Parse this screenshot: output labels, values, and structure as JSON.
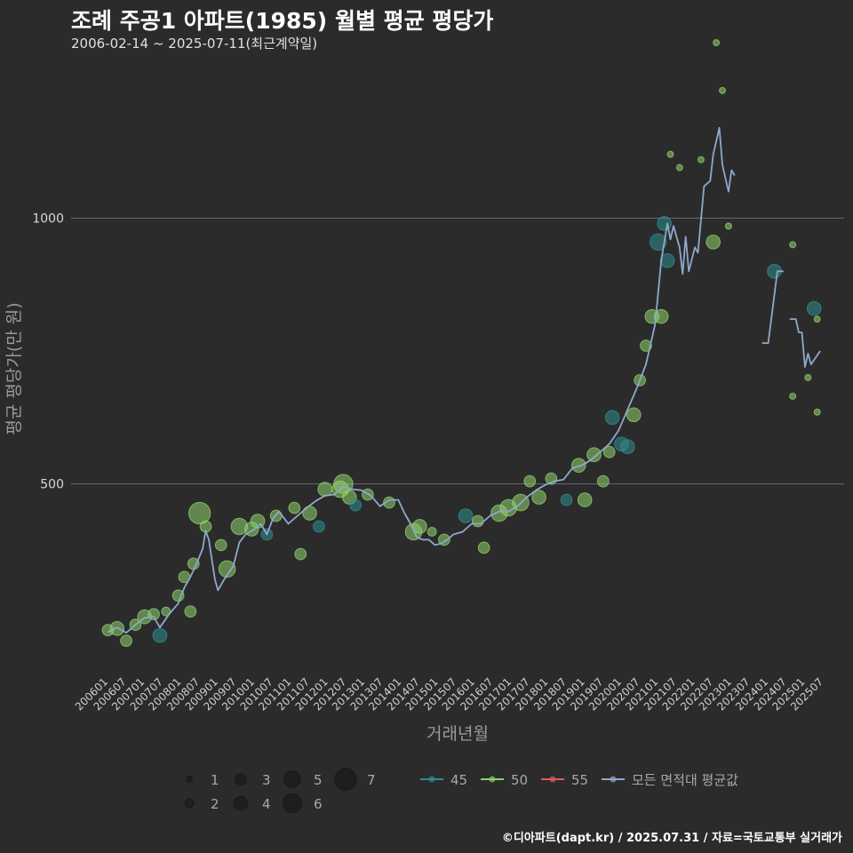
{
  "title": "조례 주공1 아파트(1985) 월별 평균 평당가",
  "subtitle": "2006-02-14 ~ 2025-07-11(최근계약일)",
  "caption": "©디아파트(dapt.kr) / 2025.07.31 / 자료=국토교통부 실거래가",
  "colors": {
    "background": "#2b2b2c",
    "grid": "#6a6a6a",
    "s45": "#2f8d8e",
    "s50": "#8fd16c",
    "s55": "#e05a5a",
    "avg": "#8fa8cc"
  },
  "chart_data": {
    "type": "scatter",
    "xlabel": "거래년월",
    "ylabel": "평균 평당가(만 원)",
    "x_range": [
      "2006-01",
      "2025-09"
    ],
    "ylim": [
      140,
      1310
    ],
    "y_ticks": [
      500,
      1000
    ],
    "x_ticks": [
      "200601",
      "200607",
      "200701",
      "200707",
      "200801",
      "200807",
      "200901",
      "200907",
      "201001",
      "201007",
      "201101",
      "201107",
      "201201",
      "201207",
      "201301",
      "201307",
      "201401",
      "201407",
      "201501",
      "201507",
      "201601",
      "201607",
      "201701",
      "201707",
      "201801",
      "201807",
      "201901",
      "201907",
      "202001",
      "202007",
      "202101",
      "202107",
      "202201",
      "202207",
      "202301",
      "202307",
      "202401",
      "202407",
      "202501",
      "202507"
    ],
    "grid": "horizontal",
    "legend_size": {
      "title": "",
      "values": [
        1,
        2,
        3,
        4,
        5,
        6,
        7
      ]
    },
    "legend_series": [
      {
        "key": "45",
        "name": "45"
      },
      {
        "key": "50",
        "name": "50"
      },
      {
        "key": "55",
        "name": "55"
      },
      {
        "key": "avg",
        "name": "모든 면적대 평균값"
      }
    ],
    "avg_line": [
      {
        "segment": [
          [
            "2006-02",
            221
          ],
          [
            "2006-05",
            230
          ],
          [
            "2006-08",
            220
          ],
          [
            "2006-11",
            235
          ],
          [
            "2007-02",
            248
          ],
          [
            "2007-05",
            250
          ],
          [
            "2007-07",
            230
          ],
          [
            "2007-10",
            255
          ],
          [
            "2008-01",
            275
          ],
          [
            "2008-03",
            305
          ],
          [
            "2008-05",
            325
          ],
          [
            "2008-07",
            350
          ],
          [
            "2008-09",
            378
          ],
          [
            "2008-10",
            412
          ],
          [
            "2008-11",
            395
          ],
          [
            "2009-01",
            320
          ],
          [
            "2009-02",
            300
          ],
          [
            "2009-04",
            320
          ],
          [
            "2009-07",
            345
          ],
          [
            "2009-09",
            390
          ],
          [
            "2009-11",
            405
          ],
          [
            "2010-02",
            415
          ],
          [
            "2010-04",
            425
          ],
          [
            "2010-06",
            405
          ],
          [
            "2010-08",
            435
          ],
          [
            "2010-10",
            448
          ],
          [
            "2011-01",
            425
          ],
          [
            "2011-04",
            440
          ],
          [
            "2011-07",
            455
          ],
          [
            "2011-10",
            468
          ],
          [
            "2012-01",
            478
          ],
          [
            "2012-04",
            480
          ],
          [
            "2012-07",
            495
          ],
          [
            "2012-10",
            490
          ],
          [
            "2013-01",
            488
          ],
          [
            "2013-04",
            478
          ],
          [
            "2013-07",
            458
          ],
          [
            "2013-10",
            470
          ],
          [
            "2014-01",
            470
          ],
          [
            "2014-03",
            445
          ],
          [
            "2014-05",
            425
          ],
          [
            "2014-07",
            400
          ],
          [
            "2014-09",
            395
          ],
          [
            "2014-11",
            395
          ],
          [
            "2015-01",
            385
          ],
          [
            "2015-03",
            388
          ],
          [
            "2015-05",
            395
          ],
          [
            "2015-07",
            405
          ],
          [
            "2015-10",
            410
          ],
          [
            "2016-01",
            425
          ],
          [
            "2016-04",
            425
          ],
          [
            "2016-07",
            440
          ],
          [
            "2016-10",
            448
          ],
          [
            "2017-01",
            448
          ],
          [
            "2017-04",
            458
          ],
          [
            "2017-07",
            475
          ],
          [
            "2017-10",
            488
          ],
          [
            "2018-01",
            498
          ],
          [
            "2018-04",
            505
          ],
          [
            "2018-07",
            508
          ],
          [
            "2018-10",
            530
          ],
          [
            "2019-01",
            535
          ],
          [
            "2019-04",
            545
          ],
          [
            "2019-07",
            560
          ],
          [
            "2019-10",
            575
          ],
          [
            "2020-01",
            600
          ],
          [
            "2020-04",
            640
          ],
          [
            "2020-07",
            680
          ],
          [
            "2020-10",
            725
          ],
          [
            "2021-01",
            800
          ],
          [
            "2021-03",
            920
          ],
          [
            "2021-05",
            990
          ],
          [
            "2021-06",
            960
          ],
          [
            "2021-07",
            985
          ],
          [
            "2021-09",
            945
          ],
          [
            "2021-10",
            895
          ],
          [
            "2021-11",
            965
          ],
          [
            "2021-12",
            900
          ],
          [
            "2022-02",
            945
          ],
          [
            "2022-03",
            935
          ],
          [
            "2022-05",
            1060
          ],
          [
            "2022-07",
            1070
          ],
          [
            "2022-08",
            1120
          ],
          [
            "2022-10",
            1170
          ],
          [
            "2022-11",
            1100
          ],
          [
            "2023-01",
            1050
          ],
          [
            "2023-02",
            1090
          ],
          [
            "2023-03",
            1080
          ]
        ]
      },
      {
        "segment": [
          [
            "2023-12",
            765
          ],
          [
            "2024-02",
            765
          ],
          [
            "2024-05",
            900
          ],
          [
            "2024-07",
            900
          ]
        ]
      },
      {
        "segment": [
          [
            "2024-09",
            810
          ],
          [
            "2024-11",
            810
          ],
          [
            "2024-12",
            785
          ],
          [
            "2025-01",
            785
          ],
          [
            "2025-02",
            720
          ],
          [
            "2025-03",
            745
          ],
          [
            "2025-04",
            725
          ],
          [
            "2025-07",
            750
          ]
        ]
      }
    ],
    "points": [
      {
        "s": "50",
        "x": "2006-02",
        "y": 225,
        "n": 3
      },
      {
        "s": "50",
        "x": "2006-05",
        "y": 228,
        "n": 4
      },
      {
        "s": "50",
        "x": "2006-08",
        "y": 205,
        "n": 3
      },
      {
        "s": "50",
        "x": "2006-11",
        "y": 235,
        "n": 3
      },
      {
        "s": "50",
        "x": "2007-02",
        "y": 250,
        "n": 4
      },
      {
        "s": "50",
        "x": "2007-05",
        "y": 255,
        "n": 3
      },
      {
        "s": "45",
        "x": "2007-07",
        "y": 215,
        "n": 4
      },
      {
        "s": "50",
        "x": "2007-09",
        "y": 260,
        "n": 2
      },
      {
        "s": "50",
        "x": "2008-01",
        "y": 290,
        "n": 3
      },
      {
        "s": "50",
        "x": "2008-03",
        "y": 325,
        "n": 3
      },
      {
        "s": "50",
        "x": "2008-06",
        "y": 350,
        "n": 3
      },
      {
        "s": "50",
        "x": "2008-08",
        "y": 445,
        "n": 7
      },
      {
        "s": "50",
        "x": "2008-10",
        "y": 420,
        "n": 3
      },
      {
        "s": "50",
        "x": "2008-05",
        "y": 260,
        "n": 3
      },
      {
        "s": "50",
        "x": "2009-05",
        "y": 340,
        "n": 5
      },
      {
        "s": "50",
        "x": "2009-09",
        "y": 420,
        "n": 5
      },
      {
        "s": "50",
        "x": "2009-03",
        "y": 385,
        "n": 3
      },
      {
        "s": "50",
        "x": "2010-01",
        "y": 415,
        "n": 4
      },
      {
        "s": "50",
        "x": "2010-03",
        "y": 430,
        "n": 4
      },
      {
        "s": "45",
        "x": "2010-06",
        "y": 405,
        "n": 3
      },
      {
        "s": "50",
        "x": "2010-09",
        "y": 440,
        "n": 3
      },
      {
        "s": "50",
        "x": "2011-03",
        "y": 455,
        "n": 3
      },
      {
        "s": "50",
        "x": "2011-05",
        "y": 368,
        "n": 3
      },
      {
        "s": "50",
        "x": "2011-08",
        "y": 445,
        "n": 4
      },
      {
        "s": "45",
        "x": "2011-11",
        "y": 420,
        "n": 3
      },
      {
        "s": "50",
        "x": "2012-01",
        "y": 490,
        "n": 4
      },
      {
        "s": "50",
        "x": "2012-06",
        "y": 490,
        "n": 5
      },
      {
        "s": "50",
        "x": "2012-07",
        "y": 500,
        "n": 6
      },
      {
        "s": "50",
        "x": "2012-09",
        "y": 475,
        "n": 4
      },
      {
        "s": "45",
        "x": "2012-11",
        "y": 460,
        "n": 3
      },
      {
        "s": "50",
        "x": "2013-03",
        "y": 480,
        "n": 3
      },
      {
        "s": "50",
        "x": "2013-10",
        "y": 465,
        "n": 3
      },
      {
        "s": "50",
        "x": "2014-06",
        "y": 410,
        "n": 5
      },
      {
        "s": "50",
        "x": "2014-08",
        "y": 420,
        "n": 4
      },
      {
        "s": "50",
        "x": "2014-12",
        "y": 410,
        "n": 2
      },
      {
        "s": "50",
        "x": "2015-04",
        "y": 395,
        "n": 3
      },
      {
        "s": "45",
        "x": "2015-11",
        "y": 440,
        "n": 4
      },
      {
        "s": "50",
        "x": "2016-03",
        "y": 430,
        "n": 3
      },
      {
        "s": "50",
        "x": "2016-05",
        "y": 380,
        "n": 3
      },
      {
        "s": "50",
        "x": "2016-10",
        "y": 445,
        "n": 5
      },
      {
        "s": "50",
        "x": "2017-01",
        "y": 455,
        "n": 5
      },
      {
        "s": "50",
        "x": "2017-05",
        "y": 465,
        "n": 5
      },
      {
        "s": "50",
        "x": "2017-08",
        "y": 505,
        "n": 3
      },
      {
        "s": "50",
        "x": "2017-11",
        "y": 475,
        "n": 4
      },
      {
        "s": "50",
        "x": "2018-03",
        "y": 510,
        "n": 3
      },
      {
        "s": "45",
        "x": "2018-08",
        "y": 470,
        "n": 3
      },
      {
        "s": "50",
        "x": "2018-12",
        "y": 535,
        "n": 4
      },
      {
        "s": "50",
        "x": "2019-02",
        "y": 470,
        "n": 4
      },
      {
        "s": "50",
        "x": "2019-05",
        "y": 555,
        "n": 4
      },
      {
        "s": "50",
        "x": "2019-08",
        "y": 505,
        "n": 3
      },
      {
        "s": "50",
        "x": "2019-10",
        "y": 560,
        "n": 3
      },
      {
        "s": "45",
        "x": "2019-11",
        "y": 625,
        "n": 4
      },
      {
        "s": "45",
        "x": "2020-02",
        "y": 575,
        "n": 4
      },
      {
        "s": "45",
        "x": "2020-04",
        "y": 570,
        "n": 4
      },
      {
        "s": "50",
        "x": "2020-06",
        "y": 630,
        "n": 4
      },
      {
        "s": "50",
        "x": "2020-08",
        "y": 695,
        "n": 3
      },
      {
        "s": "50",
        "x": "2020-10",
        "y": 760,
        "n": 3
      },
      {
        "s": "50",
        "x": "2020-12",
        "y": 815,
        "n": 4
      },
      {
        "s": "45",
        "x": "2021-02",
        "y": 955,
        "n": 5
      },
      {
        "s": "45",
        "x": "2021-04",
        "y": 990,
        "n": 4
      },
      {
        "s": "50",
        "x": "2021-03",
        "y": 815,
        "n": 4
      },
      {
        "s": "50",
        "x": "2021-06",
        "y": 1120,
        "n": 1
      },
      {
        "s": "50",
        "x": "2021-09",
        "y": 1095,
        "n": 1
      },
      {
        "s": "45",
        "x": "2021-05",
        "y": 920,
        "n": 4
      },
      {
        "s": "50",
        "x": "2022-04",
        "y": 1110,
        "n": 1
      },
      {
        "s": "50",
        "x": "2022-09",
        "y": 1330,
        "n": 1
      },
      {
        "s": "50",
        "x": "2022-11",
        "y": 1240,
        "n": 1
      },
      {
        "s": "50",
        "x": "2022-08",
        "y": 955,
        "n": 4
      },
      {
        "s": "50",
        "x": "2023-01",
        "y": 985,
        "n": 1
      },
      {
        "s": "45",
        "x": "2024-04",
        "y": 900,
        "n": 4
      },
      {
        "s": "50",
        "x": "2024-10",
        "y": 950,
        "n": 1
      },
      {
        "s": "45",
        "x": "2025-05",
        "y": 830,
        "n": 4
      },
      {
        "s": "50",
        "x": "2024-10",
        "y": 665,
        "n": 1
      },
      {
        "s": "50",
        "x": "2025-03",
        "y": 700,
        "n": 1
      },
      {
        "s": "50",
        "x": "2025-06",
        "y": 810,
        "n": 1
      },
      {
        "s": "50",
        "x": "2025-06",
        "y": 635,
        "n": 1
      }
    ]
  }
}
